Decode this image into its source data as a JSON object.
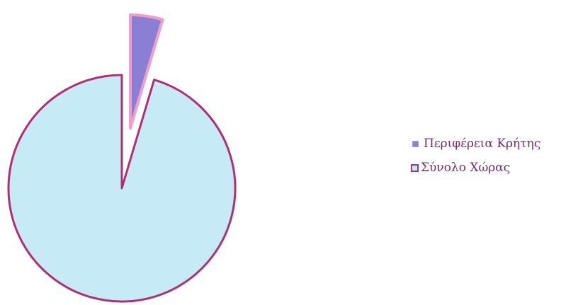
{
  "chart_data": {
    "type": "pie",
    "slices": [
      {
        "label": "Περιφέρεια Κρήτης",
        "value": 4.6,
        "fill": "#8b7fd3",
        "stroke": "#f0a0c8"
      },
      {
        "label": "Σύνολο Χώρας",
        "value": 95.4,
        "fill": "#c6ebf6",
        "stroke": "#b03070"
      }
    ],
    "legend_position": "right",
    "exploded_slice": "Περιφέρεια Κρήτης",
    "colors": {
      "legend_text": "#7a2a6e"
    }
  }
}
